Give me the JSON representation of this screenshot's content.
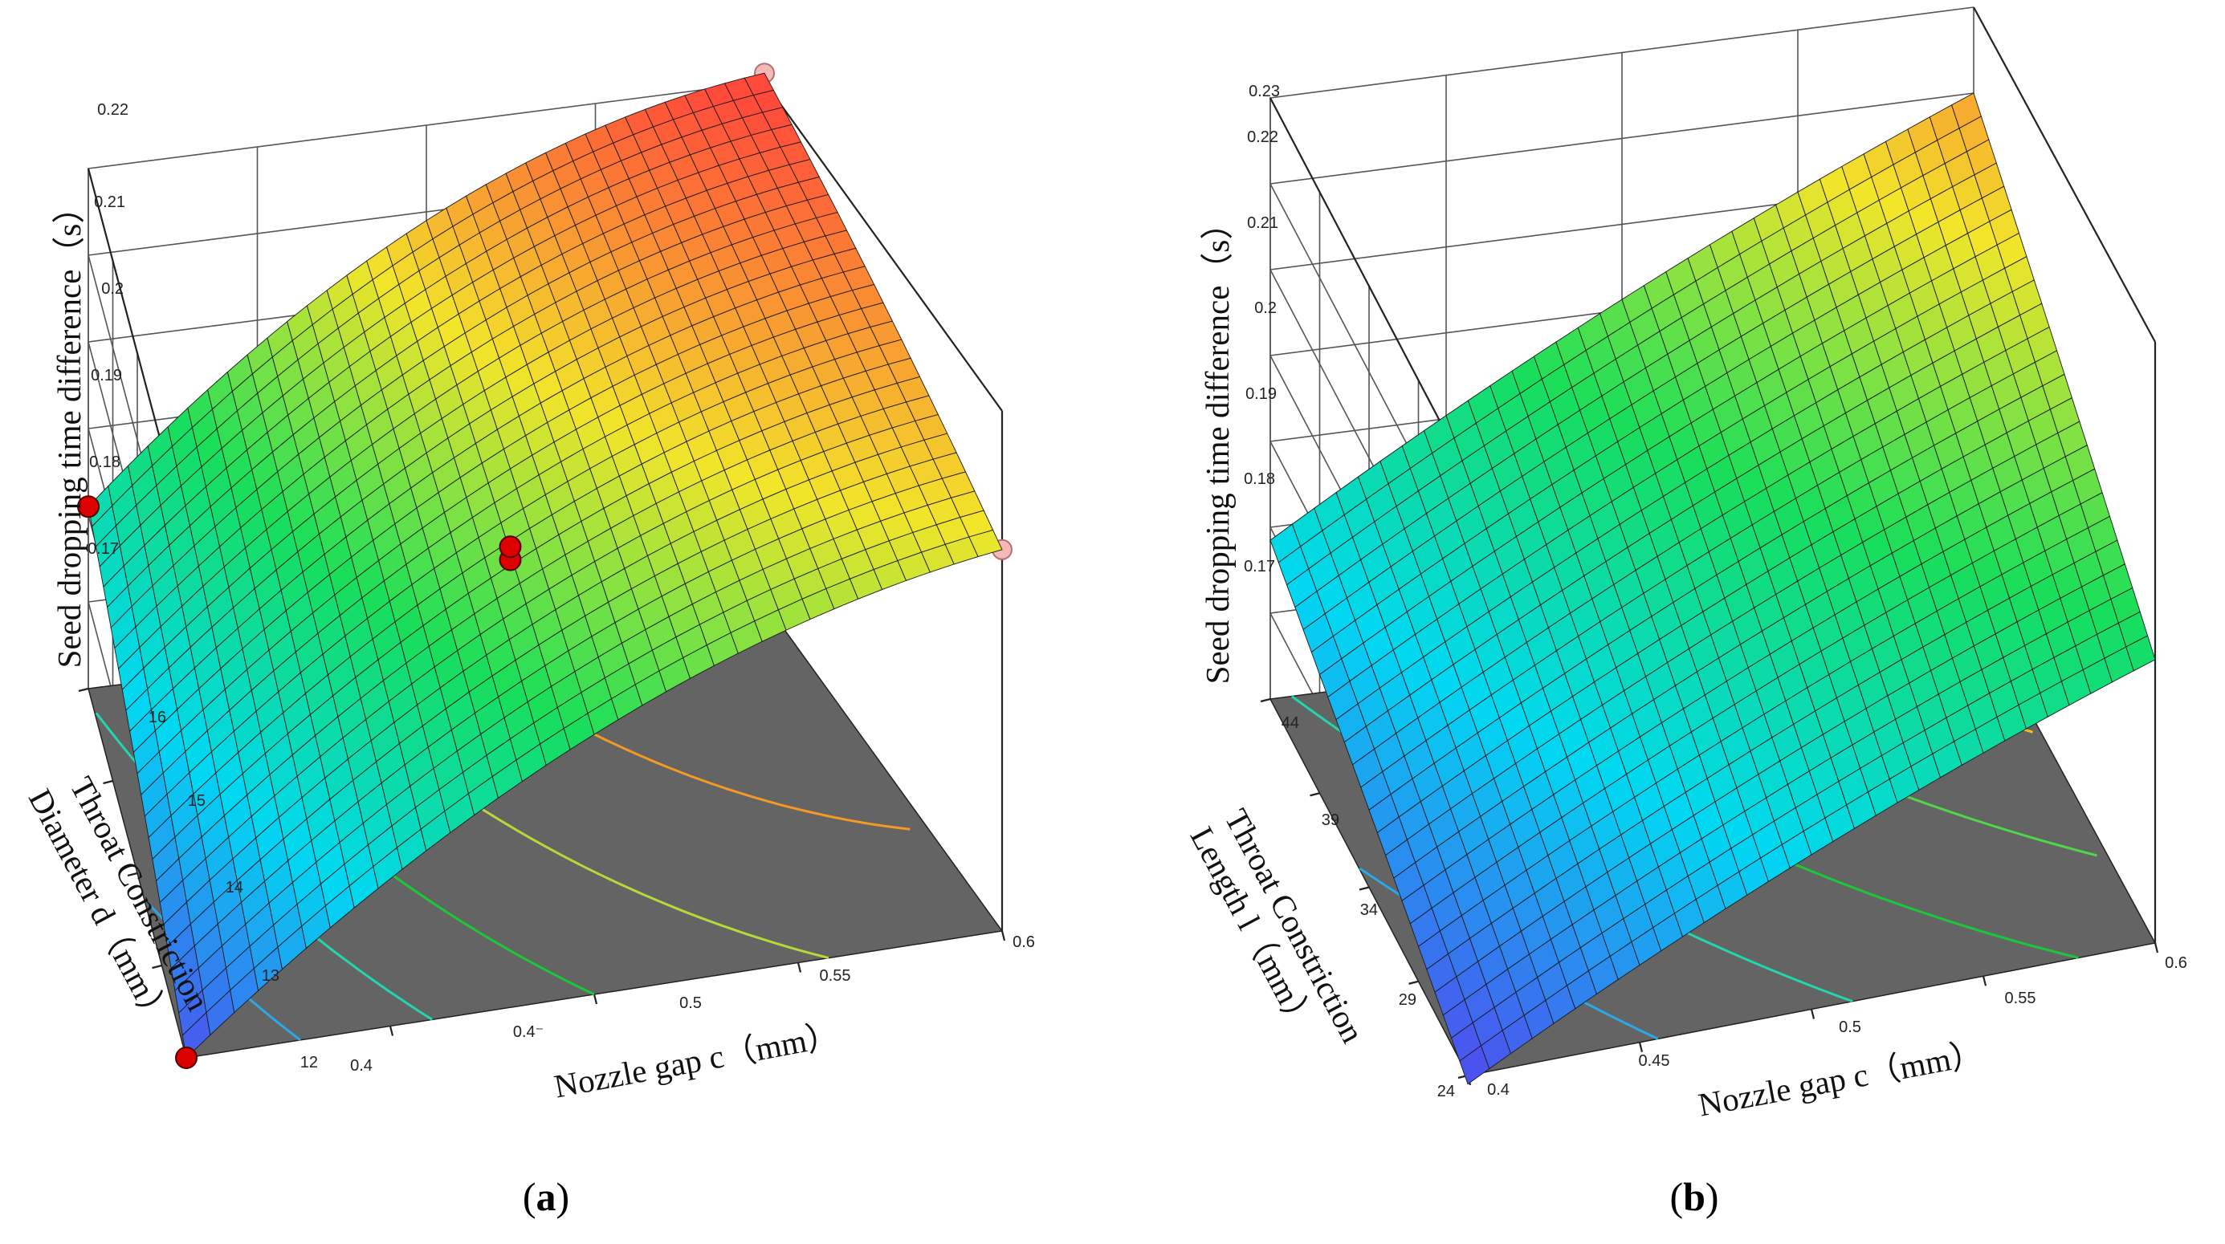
{
  "chart_data": [
    {
      "type": "surface",
      "panel_label": "(a)",
      "panel_letter": "a",
      "zlabel": "Seed dropping time difference（s）",
      "xlabel": "Nozzle gap c（mm）",
      "ylabel_line1": "Throat Constriction",
      "ylabel_line2": "Diameter d（mm）",
      "x_range": [
        0.4,
        0.6
      ],
      "y_range": [
        12,
        16
      ],
      "z_range": [
        0.16,
        0.22
      ],
      "x_ticks": [
        "0.4",
        "0.4⁻",
        "0.5",
        "0.55",
        "0.6"
      ],
      "y_ticks": [
        "12",
        "13",
        "14",
        "15",
        "16"
      ],
      "z_ticks": [
        "0.17",
        "0.18",
        "0.19",
        "0.2",
        "0.21",
        "0.22"
      ],
      "surface_model": {
        "corner_values": {
          "x0_y0": 0.16,
          "x1_y0": 0.204,
          "x0_y1": 0.181,
          "x1_y1": 0.221
        },
        "curvature": 0.016
      },
      "contour_levels": [
        0.17,
        0.18,
        0.19,
        0.2,
        0.21
      ],
      "contour_colors": [
        "#2aa8e8",
        "#22d6b0",
        "#19c93a",
        "#b6d93a",
        "#f39a25"
      ],
      "design_points": [
        {
          "x": 0.4,
          "y": 12,
          "z": 0.16,
          "above": true
        },
        {
          "x": 0.4,
          "y": 16,
          "z": 0.181,
          "above": true
        },
        {
          "x": 0.5,
          "y": 14,
          "z": 0.19,
          "above": true
        },
        {
          "x": 0.5,
          "y": 14,
          "z": 0.1915,
          "above": true
        },
        {
          "x": 0.6,
          "y": 16,
          "z": 0.221,
          "above": false
        },
        {
          "x": 0.6,
          "y": 12,
          "z": 0.204,
          "above": false
        }
      ]
    },
    {
      "type": "surface",
      "panel_label": "(b)",
      "panel_letter": "b",
      "zlabel": "Seed dropping time difference（s）",
      "xlabel": "Nozzle gap c（mm）",
      "ylabel_line1": "Throat Constriction",
      "ylabel_line2": "Length l（mm）",
      "x_range": [
        0.4,
        0.6
      ],
      "y_range": [
        24,
        44
      ],
      "z_range": [
        0.16,
        0.23
      ],
      "x_ticks": [
        "0.4",
        "0.45",
        "0.5",
        "0.55",
        "0.6"
      ],
      "y_ticks": [
        "24",
        "29",
        "34",
        "39",
        "44"
      ],
      "z_ticks": [
        "0.17",
        "0.18",
        "0.19",
        "0.2",
        "0.21",
        "0.22",
        "0.23"
      ],
      "surface_model": {
        "corner_values": {
          "x0_y0": 0.159,
          "x1_y0": 0.193,
          "x0_y1": 0.1785,
          "x1_y1": 0.22
        },
        "curvature": 0.004
      },
      "contour_levels": [
        0.17,
        0.18,
        0.19,
        0.2,
        0.21
      ],
      "contour_colors": [
        "#2aa8e8",
        "#22d6b0",
        "#19c93a",
        "#4fd64a",
        "#f5c21c"
      ],
      "design_points": []
    }
  ],
  "colors": {
    "floor": "#646464",
    "point": "#dd0000",
    "point_hidden": "#f4b8b8",
    "colormap": [
      "#4b52ee",
      "#00d8f2",
      "#18de5a",
      "#f2e52a",
      "#ff4a3a"
    ]
  }
}
